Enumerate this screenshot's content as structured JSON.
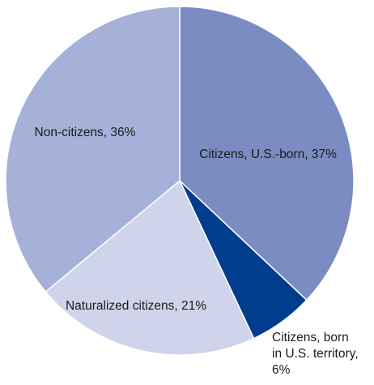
{
  "chart_data": {
    "type": "pie",
    "title": "",
    "slices": [
      {
        "label": "Citizens, U.S.-born",
        "value": 37,
        "display": "Citizens, U.S.-born, 37%",
        "color": "#7a8cc2",
        "lines": [
          "Citizens, U.S.-born, 37%"
        ]
      },
      {
        "label": "Citizens, born in U.S. territory",
        "value": 6,
        "display": "Citizens, born in U.S. territory, 6%",
        "color": "#003d8c",
        "lines": [
          "Citizens, born",
          "in U.S. territory,",
          "6%"
        ]
      },
      {
        "label": "Naturalized citizens",
        "value": 21,
        "display": "Naturalized citizens, 21%",
        "color": "#cfd4ea",
        "lines": [
          "Naturalized citizens, 21%"
        ]
      },
      {
        "label": "Non-citizens",
        "value": 36,
        "display": "Non-citizens, 36%",
        "color": "#a5b1d8",
        "lines": [
          "Non-citizens, 36%"
        ]
      }
    ],
    "start_angle": "12 o'clock",
    "direction": "clockwise",
    "legend": "none"
  }
}
